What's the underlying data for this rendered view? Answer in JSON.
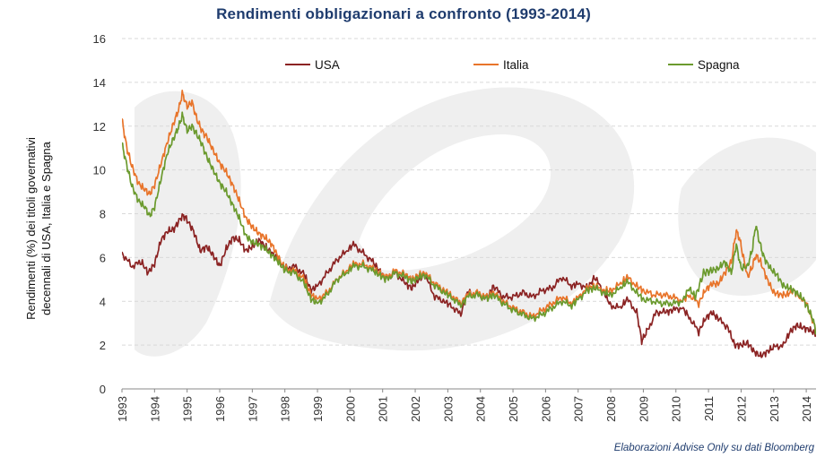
{
  "chart_data": {
    "type": "line",
    "title": "Rendimenti obbligazionari a confronto (1993-2014)",
    "ylabel": "Rendimenti (%) dei titoli governativi decennali di USA, Italia e Spagna",
    "ylabel_lines": [
      "Rendimenti (%) dei titoli governativi",
      "decennali di USA, Italia e Spagna"
    ],
    "xlabel": "",
    "ylim": [
      0,
      16
    ],
    "yticks": [
      0,
      2,
      4,
      6,
      8,
      10,
      12,
      14,
      16
    ],
    "xlim": [
      1993,
      2014.3
    ],
    "xticks": [
      1993,
      1994,
      1995,
      1996,
      1997,
      1998,
      1999,
      2000,
      2001,
      2002,
      2003,
      2004,
      2005,
      2006,
      2007,
      2008,
      2009,
      2010,
      2011,
      2012,
      2013,
      2014
    ],
    "grid": "horizontal-dashed",
    "legend_position": "top",
    "series": [
      {
        "name": "USA",
        "color": "#8b2323",
        "points": [
          [
            1993.0,
            6.2
          ],
          [
            1993.3,
            5.6
          ],
          [
            1993.6,
            5.8
          ],
          [
            1993.8,
            5.3
          ],
          [
            1994.0,
            5.7
          ],
          [
            1994.2,
            6.8
          ],
          [
            1994.4,
            7.2
          ],
          [
            1994.6,
            7.3
          ],
          [
            1994.8,
            7.8
          ],
          [
            1994.9,
            7.9
          ],
          [
            1995.0,
            7.7
          ],
          [
            1995.2,
            7.2
          ],
          [
            1995.4,
            6.3
          ],
          [
            1995.6,
            6.5
          ],
          [
            1995.8,
            6.1
          ],
          [
            1996.0,
            5.6
          ],
          [
            1996.2,
            6.4
          ],
          [
            1996.4,
            6.9
          ],
          [
            1996.6,
            6.8
          ],
          [
            1996.8,
            6.3
          ],
          [
            1997.0,
            6.5
          ],
          [
            1997.2,
            6.8
          ],
          [
            1997.4,
            6.5
          ],
          [
            1997.6,
            6.2
          ],
          [
            1997.8,
            5.9
          ],
          [
            1998.0,
            5.5
          ],
          [
            1998.3,
            5.6
          ],
          [
            1998.6,
            5.2
          ],
          [
            1998.8,
            4.5
          ],
          [
            1999.0,
            4.7
          ],
          [
            1999.3,
            5.3
          ],
          [
            1999.6,
            5.9
          ],
          [
            1999.9,
            6.3
          ],
          [
            2000.1,
            6.6
          ],
          [
            2000.4,
            6.2
          ],
          [
            2000.7,
            5.8
          ],
          [
            2000.9,
            5.4
          ],
          [
            2001.1,
            5.0
          ],
          [
            2001.4,
            5.3
          ],
          [
            2001.7,
            4.8
          ],
          [
            2001.9,
            4.6
          ],
          [
            2002.1,
            5.0
          ],
          [
            2002.3,
            5.2
          ],
          [
            2002.6,
            4.2
          ],
          [
            2002.9,
            4.0
          ],
          [
            2003.1,
            3.8
          ],
          [
            2003.4,
            3.4
          ],
          [
            2003.6,
            4.4
          ],
          [
            2003.9,
            4.3
          ],
          [
            2004.2,
            4.1
          ],
          [
            2004.4,
            4.7
          ],
          [
            2004.7,
            4.2
          ],
          [
            2005.0,
            4.2
          ],
          [
            2005.3,
            4.4
          ],
          [
            2005.6,
            4.2
          ],
          [
            2005.9,
            4.5
          ],
          [
            2006.2,
            4.6
          ],
          [
            2006.5,
            5.1
          ],
          [
            2006.8,
            4.7
          ],
          [
            2007.0,
            4.8
          ],
          [
            2007.3,
            4.6
          ],
          [
            2007.5,
            5.1
          ],
          [
            2007.8,
            4.4
          ],
          [
            2008.0,
            3.8
          ],
          [
            2008.3,
            3.7
          ],
          [
            2008.5,
            4.1
          ],
          [
            2008.8,
            3.5
          ],
          [
            2008.95,
            2.2
          ],
          [
            2009.1,
            2.6
          ],
          [
            2009.4,
            3.5
          ],
          [
            2009.7,
            3.5
          ],
          [
            2009.9,
            3.6
          ],
          [
            2010.2,
            3.7
          ],
          [
            2010.4,
            3.3
          ],
          [
            2010.7,
            2.6
          ],
          [
            2010.9,
            3.2
          ],
          [
            2011.1,
            3.5
          ],
          [
            2011.3,
            3.2
          ],
          [
            2011.6,
            2.8
          ],
          [
            2011.8,
            2.0
          ],
          [
            2012.0,
            2.0
          ],
          [
            2012.2,
            2.1
          ],
          [
            2012.4,
            1.7
          ],
          [
            2012.6,
            1.5
          ],
          [
            2012.8,
            1.7
          ],
          [
            2013.0,
            1.9
          ],
          [
            2013.3,
            2.0
          ],
          [
            2013.5,
            2.6
          ],
          [
            2013.7,
            2.9
          ],
          [
            2013.9,
            2.8
          ],
          [
            2014.1,
            2.7
          ],
          [
            2014.3,
            2.5
          ]
        ]
      },
      {
        "name": "Italia",
        "color": "#e8742a",
        "points": [
          [
            1993.0,
            12.3
          ],
          [
            1993.15,
            11.0
          ],
          [
            1993.3,
            10.2
          ],
          [
            1993.5,
            9.4
          ],
          [
            1993.7,
            9.1
          ],
          [
            1993.85,
            8.9
          ],
          [
            1994.0,
            9.3
          ],
          [
            1994.2,
            10.3
          ],
          [
            1994.4,
            11.3
          ],
          [
            1994.6,
            12.2
          ],
          [
            1994.75,
            12.8
          ],
          [
            1994.85,
            13.5
          ],
          [
            1995.0,
            12.9
          ],
          [
            1995.15,
            13.1
          ],
          [
            1995.3,
            12.3
          ],
          [
            1995.45,
            11.8
          ],
          [
            1995.6,
            11.5
          ],
          [
            1995.8,
            10.9
          ],
          [
            1996.0,
            10.3
          ],
          [
            1996.2,
            9.9
          ],
          [
            1996.4,
            9.3
          ],
          [
            1996.6,
            8.6
          ],
          [
            1996.8,
            7.8
          ],
          [
            1997.0,
            7.4
          ],
          [
            1997.2,
            7.1
          ],
          [
            1997.4,
            6.9
          ],
          [
            1997.6,
            6.6
          ],
          [
            1997.8,
            6.0
          ],
          [
            1998.0,
            5.5
          ],
          [
            1998.3,
            5.4
          ],
          [
            1998.6,
            5.0
          ],
          [
            1998.8,
            4.3
          ],
          [
            1999.0,
            4.1
          ],
          [
            1999.3,
            4.4
          ],
          [
            1999.6,
            5.0
          ],
          [
            1999.9,
            5.4
          ],
          [
            2000.1,
            5.7
          ],
          [
            2000.4,
            5.7
          ],
          [
            2000.7,
            5.5
          ],
          [
            2000.9,
            5.3
          ],
          [
            2001.1,
            5.1
          ],
          [
            2001.4,
            5.4
          ],
          [
            2001.7,
            5.2
          ],
          [
            2001.9,
            5.0
          ],
          [
            2002.1,
            5.2
          ],
          [
            2002.3,
            5.3
          ],
          [
            2002.6,
            4.8
          ],
          [
            2002.9,
            4.5
          ],
          [
            2003.1,
            4.3
          ],
          [
            2003.4,
            3.9
          ],
          [
            2003.6,
            4.3
          ],
          [
            2003.9,
            4.4
          ],
          [
            2004.2,
            4.2
          ],
          [
            2004.4,
            4.4
          ],
          [
            2004.7,
            4.0
          ],
          [
            2005.0,
            3.7
          ],
          [
            2005.3,
            3.5
          ],
          [
            2005.6,
            3.3
          ],
          [
            2005.9,
            3.6
          ],
          [
            2006.2,
            3.9
          ],
          [
            2006.5,
            4.2
          ],
          [
            2006.8,
            3.9
          ],
          [
            2007.0,
            4.2
          ],
          [
            2007.3,
            4.6
          ],
          [
            2007.5,
            4.7
          ],
          [
            2007.8,
            4.5
          ],
          [
            2008.0,
            4.5
          ],
          [
            2008.3,
            4.8
          ],
          [
            2008.5,
            5.1
          ],
          [
            2008.8,
            4.7
          ],
          [
            2009.0,
            4.5
          ],
          [
            2009.3,
            4.3
          ],
          [
            2009.6,
            4.3
          ],
          [
            2009.9,
            4.2
          ],
          [
            2010.2,
            4.0
          ],
          [
            2010.4,
            4.3
          ],
          [
            2010.7,
            3.9
          ],
          [
            2010.9,
            4.5
          ],
          [
            2011.1,
            4.8
          ],
          [
            2011.3,
            4.8
          ],
          [
            2011.5,
            5.3
          ],
          [
            2011.7,
            5.8
          ],
          [
            2011.85,
            7.2
          ],
          [
            2011.95,
            6.9
          ],
          [
            2012.0,
            6.5
          ],
          [
            2012.2,
            5.1
          ],
          [
            2012.35,
            5.6
          ],
          [
            2012.45,
            6.1
          ],
          [
            2012.6,
            5.8
          ],
          [
            2012.8,
            5.0
          ],
          [
            2013.0,
            4.4
          ],
          [
            2013.2,
            4.3
          ],
          [
            2013.4,
            4.3
          ],
          [
            2013.6,
            4.5
          ],
          [
            2013.8,
            4.2
          ],
          [
            2014.0,
            3.9
          ],
          [
            2014.15,
            3.3
          ],
          [
            2014.3,
            2.7
          ]
        ]
      },
      {
        "name": "Spagna",
        "color": "#6b9a2e",
        "points": [
          [
            1993.0,
            11.2
          ],
          [
            1993.15,
            10.2
          ],
          [
            1993.3,
            9.3
          ],
          [
            1993.5,
            8.6
          ],
          [
            1993.7,
            8.3
          ],
          [
            1993.85,
            7.9
          ],
          [
            1994.0,
            8.3
          ],
          [
            1994.2,
            9.6
          ],
          [
            1994.4,
            10.8
          ],
          [
            1994.6,
            11.5
          ],
          [
            1994.75,
            12.0
          ],
          [
            1994.85,
            12.5
          ],
          [
            1995.0,
            11.8
          ],
          [
            1995.15,
            12.0
          ],
          [
            1995.3,
            11.6
          ],
          [
            1995.45,
            11.2
          ],
          [
            1995.6,
            10.6
          ],
          [
            1995.8,
            10.0
          ],
          [
            1996.0,
            9.4
          ],
          [
            1996.2,
            9.0
          ],
          [
            1996.4,
            8.4
          ],
          [
            1996.6,
            7.8
          ],
          [
            1996.8,
            7.0
          ],
          [
            1997.0,
            6.7
          ],
          [
            1997.2,
            6.6
          ],
          [
            1997.4,
            6.4
          ],
          [
            1997.6,
            6.1
          ],
          [
            1997.8,
            5.8
          ],
          [
            1998.0,
            5.4
          ],
          [
            1998.3,
            5.3
          ],
          [
            1998.6,
            4.8
          ],
          [
            1998.8,
            4.1
          ],
          [
            1999.0,
            3.9
          ],
          [
            1999.3,
            4.3
          ],
          [
            1999.6,
            5.0
          ],
          [
            1999.9,
            5.3
          ],
          [
            2000.1,
            5.6
          ],
          [
            2000.4,
            5.6
          ],
          [
            2000.7,
            5.4
          ],
          [
            2000.9,
            5.2
          ],
          [
            2001.1,
            5.0
          ],
          [
            2001.4,
            5.3
          ],
          [
            2001.7,
            5.1
          ],
          [
            2001.9,
            4.9
          ],
          [
            2002.1,
            5.1
          ],
          [
            2002.3,
            5.2
          ],
          [
            2002.6,
            4.7
          ],
          [
            2002.9,
            4.4
          ],
          [
            2003.1,
            4.2
          ],
          [
            2003.4,
            3.8
          ],
          [
            2003.6,
            4.2
          ],
          [
            2003.9,
            4.3
          ],
          [
            2004.2,
            4.1
          ],
          [
            2004.4,
            4.3
          ],
          [
            2004.7,
            3.9
          ],
          [
            2005.0,
            3.6
          ],
          [
            2005.3,
            3.4
          ],
          [
            2005.6,
            3.2
          ],
          [
            2005.9,
            3.4
          ],
          [
            2006.2,
            3.7
          ],
          [
            2006.5,
            4.0
          ],
          [
            2006.8,
            3.8
          ],
          [
            2007.0,
            4.1
          ],
          [
            2007.3,
            4.5
          ],
          [
            2007.5,
            4.6
          ],
          [
            2007.8,
            4.4
          ],
          [
            2008.0,
            4.3
          ],
          [
            2008.3,
            4.6
          ],
          [
            2008.5,
            4.9
          ],
          [
            2008.8,
            4.4
          ],
          [
            2009.0,
            4.1
          ],
          [
            2009.3,
            4.0
          ],
          [
            2009.6,
            3.9
          ],
          [
            2009.9,
            3.9
          ],
          [
            2010.2,
            4.0
          ],
          [
            2010.4,
            4.6
          ],
          [
            2010.6,
            4.2
          ],
          [
            2010.85,
            5.3
          ],
          [
            2011.1,
            5.4
          ],
          [
            2011.3,
            5.5
          ],
          [
            2011.5,
            5.8
          ],
          [
            2011.7,
            5.3
          ],
          [
            2011.85,
            6.6
          ],
          [
            2012.0,
            5.5
          ],
          [
            2012.2,
            5.6
          ],
          [
            2012.35,
            6.4
          ],
          [
            2012.45,
            7.5
          ],
          [
            2012.55,
            6.8
          ],
          [
            2012.7,
            6.0
          ],
          [
            2012.9,
            5.5
          ],
          [
            2013.1,
            5.2
          ],
          [
            2013.3,
            4.7
          ],
          [
            2013.5,
            4.6
          ],
          [
            2013.7,
            4.4
          ],
          [
            2013.9,
            4.1
          ],
          [
            2014.05,
            3.7
          ],
          [
            2014.2,
            3.2
          ],
          [
            2014.3,
            2.6
          ]
        ]
      }
    ],
    "source": "Elaborazioni Advise Only su dati Bloomberg"
  }
}
